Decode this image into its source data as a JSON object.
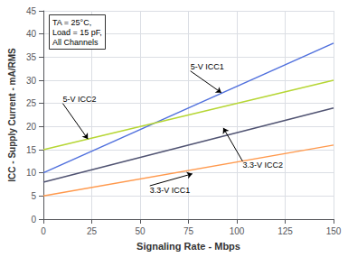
{
  "chart_data": {
    "type": "line",
    "xlabel": "Signaling Rate - Mbps",
    "ylabel": "ICC - Supply Current - mA/RMS",
    "x": [
      0,
      150
    ],
    "series": [
      {
        "name": "5-V ICC1",
        "values": [
          10.0,
          38.0
        ]
      },
      {
        "name": "5-V ICC2",
        "values": [
          15.0,
          30.0
        ]
      },
      {
        "name": "3.3-V ICC2",
        "values": [
          8.0,
          24.0
        ]
      },
      {
        "name": "3.3-V ICC1",
        "values": [
          5.0,
          16.0
        ]
      }
    ],
    "xlim": [
      0,
      150
    ],
    "ylim": [
      0,
      45
    ],
    "xticks": [
      0,
      25,
      50,
      75,
      100,
      125,
      150
    ],
    "yticks": [
      0,
      5,
      10,
      15,
      20,
      25,
      30,
      35,
      40,
      45
    ],
    "grid": true,
    "annotations": [
      {
        "text": "TA = 25°C,\nLoad = 15 pF,\nAll Channels"
      },
      {
        "text": "5-V ICC1",
        "xy": [
          92,
          27.3
        ],
        "xytext": [
          76,
          32.0
        ]
      },
      {
        "text": "3.3-V ICC1",
        "xy": [
          77,
          9.8
        ],
        "xytext": [
          55,
          7.2
        ]
      },
      {
        "text": "5-V ICC2",
        "xy": [
          23,
          17.3
        ],
        "xytext": [
          10,
          25.0
        ]
      },
      {
        "text": "3.3-V ICC2",
        "xy": [
          93,
          19.7
        ],
        "xytext": [
          103,
          12.5
        ]
      }
    ]
  }
}
